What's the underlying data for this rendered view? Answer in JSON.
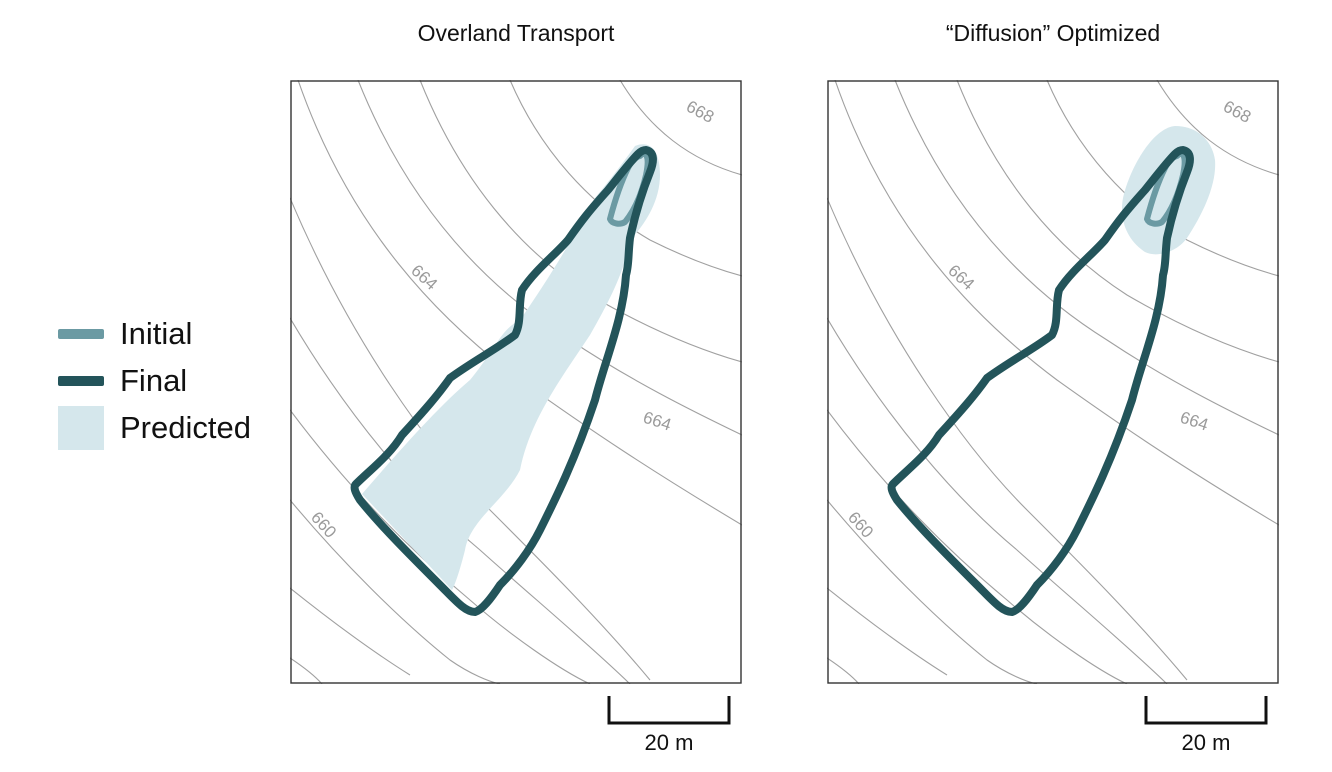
{
  "colors": {
    "initial": "#6b9aa3",
    "final": "#23545a",
    "predicted": "#d5e7ec",
    "contour": "#9a9a9a",
    "contour_label": "#9a9a9a"
  },
  "legend": {
    "items": [
      {
        "label": "Initial",
        "symbol": "line",
        "color": "#6b9aa3"
      },
      {
        "label": "Final",
        "symbol": "line",
        "color": "#23545a"
      },
      {
        "label": "Predicted",
        "symbol": "area",
        "color": "#d5e7ec"
      }
    ]
  },
  "panels": [
    {
      "title": "Overland Transport",
      "contour_labels": [
        "668",
        "664",
        "664",
        "660"
      ],
      "scale_label": "20 m"
    },
    {
      "title": "“Diffusion” Optimized",
      "contour_labels": [
        "668",
        "664",
        "664",
        "660"
      ],
      "scale_label": "20 m"
    }
  ]
}
